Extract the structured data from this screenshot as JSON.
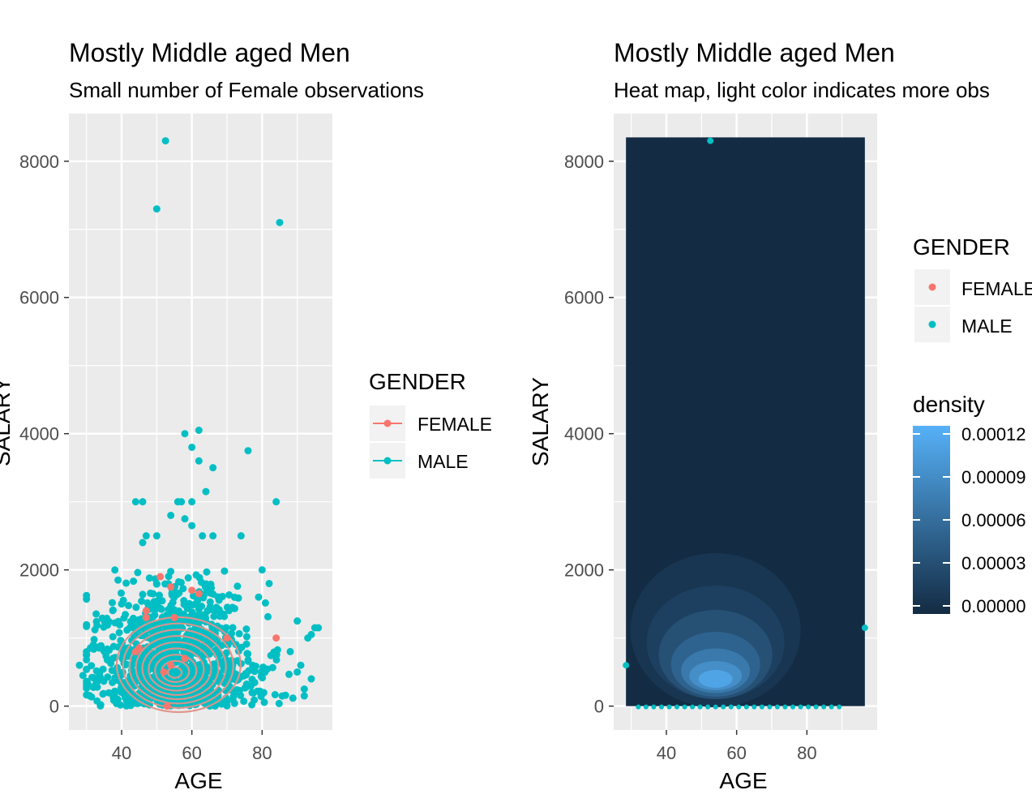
{
  "colors": {
    "female": "#F8766D",
    "male": "#00BFC4",
    "panel_bg": "#EBEBEB",
    "grid": "#FFFFFF",
    "tick_text": "#4D4D4D",
    "heat_low": "#132B43",
    "heat_high": "#56B1F7"
  },
  "chart_data": [
    {
      "type": "scatter",
      "title": "Mostly Middle aged Men",
      "subtitle": "Small number of Female observations",
      "xlabel": "AGE",
      "ylabel": "SALARY",
      "xlim": [
        25,
        100
      ],
      "ylim": [
        -350,
        8700
      ],
      "x_ticks": [
        40,
        60,
        80
      ],
      "y_ticks": [
        0,
        2000,
        4000,
        6000,
        8000
      ],
      "grid": true,
      "overlay": "2d density contours",
      "legend": {
        "title": "GENDER",
        "placement": "right",
        "entries": [
          {
            "label": "FEMALE",
            "color": "#F8766D"
          },
          {
            "label": "MALE",
            "color": "#00BFC4"
          }
        ]
      },
      "series": [
        {
          "name": "MALE",
          "points": [
            [
              52.5,
              8300
            ],
            [
              50,
              7300
            ],
            [
              85,
              7100
            ],
            [
              58,
              4000
            ],
            [
              62,
              4050
            ],
            [
              60,
              3800
            ],
            [
              62,
              3600
            ],
            [
              66,
              3500
            ],
            [
              76,
              3750
            ],
            [
              44,
              3000
            ],
            [
              46,
              3000
            ],
            [
              56,
              3000
            ],
            [
              57,
              3000
            ],
            [
              60,
              3000
            ],
            [
              84,
              3000
            ],
            [
              64,
              3150
            ],
            [
              54,
              2800
            ],
            [
              60,
              2650
            ],
            [
              58,
              2750
            ],
            [
              74,
              2500
            ],
            [
              47,
              2500
            ],
            [
              50,
              2500
            ],
            [
              46,
              2400
            ],
            [
              63,
              2500
            ],
            [
              66,
              2500
            ],
            [
              80,
              2000
            ],
            [
              82,
              1800
            ],
            [
              79,
              1600
            ],
            [
              40,
              1500
            ],
            [
              90,
              1250
            ],
            [
              96,
              1150
            ],
            [
              94,
              1050
            ],
            [
              93,
              1000
            ],
            [
              88,
              800
            ],
            [
              91,
              600
            ],
            [
              90,
              500
            ],
            [
              94,
              400
            ],
            [
              92,
              250
            ],
            [
              92,
              150
            ],
            [
              28,
              600
            ],
            [
              29,
              450
            ],
            [
              30,
              300
            ],
            [
              31,
              150
            ],
            [
              95,
              1150
            ]
          ],
          "cluster": {
            "count": 1100,
            "center": [
              55,
              650
            ],
            "spread_x": 11,
            "spread_y": 450,
            "xlim": [
              30,
              92
            ]
          }
        },
        {
          "name": "FEMALE",
          "points": [
            [
              51,
              1900
            ],
            [
              54,
              1750
            ],
            [
              47,
              1400
            ],
            [
              47,
              1300
            ],
            [
              45,
              850
            ],
            [
              44,
              800
            ],
            [
              55,
              1300
            ],
            [
              60,
              1700
            ],
            [
              62,
              1650
            ],
            [
              84,
              1000
            ],
            [
              70,
              1000
            ],
            [
              54,
              600
            ],
            [
              52,
              500
            ],
            [
              58,
              700
            ],
            [
              53,
              0
            ]
          ]
        }
      ]
    },
    {
      "type": "heatmap",
      "title": "Mostly Middle aged Men",
      "subtitle": "Heat map, light color indicates more obs",
      "xlabel": "AGE",
      "ylabel": "SALARY",
      "xlim": [
        25,
        100
      ],
      "ylim": [
        -350,
        8700
      ],
      "x_ticks": [
        40,
        60,
        80
      ],
      "y_ticks": [
        0,
        2000,
        4000,
        6000,
        8000
      ],
      "grid": true,
      "raster_extent": {
        "x": [
          28.5,
          96.5
        ],
        "y": [
          0,
          8350
        ]
      },
      "density_peak": {
        "age": 54,
        "salary": 400,
        "value": 0.00012
      },
      "legend_gender": {
        "title": "GENDER",
        "entries": [
          {
            "label": "FEMALE",
            "color": "#F8766D"
          },
          {
            "label": "MALE",
            "color": "#00BFC4"
          }
        ]
      },
      "legend_density": {
        "title": "density",
        "breaks": [
          0.00012,
          9e-05,
          6e-05,
          3e-05,
          0.0
        ],
        "labels": [
          "0.00012",
          "0.00009",
          "0.00006",
          "0.00003",
          "0.00000"
        ]
      }
    }
  ]
}
